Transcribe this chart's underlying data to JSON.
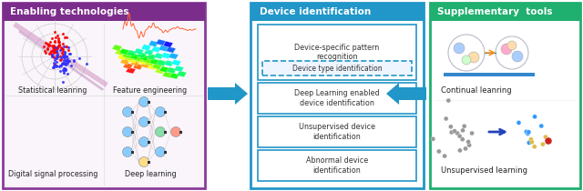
{
  "panel1_title": "Enabling technologies",
  "panel1_title_bg": "#7B2D8B",
  "panel1_border": "#8B3A9B",
  "panel1_bg": "#FAF5FB",
  "panel1_labels": [
    "Statistical leanring",
    "Feature engineering",
    "Digital signal processing",
    "Deep learning"
  ],
  "panel2_title": "Device identification",
  "panel2_title_bg": "#2196C8",
  "panel2_border": "#2196C8",
  "panel2_bg": "#FFFFFF",
  "panel2_boxes_inner": [
    "Device-specific pattern\nrecognition",
    "Deep Learning enabled\ndevice identification",
    "Unsupervised device\nidentification",
    "Abnormal device\nidentification"
  ],
  "panel2_dashed_box": "Device type identification",
  "panel3_title": "Supplementary  tools",
  "panel3_title_bg": "#1FAF6E",
  "panel3_border": "#1FAF6E",
  "panel3_bg": "#FFFFFF",
  "panel3_label1": "Continual leanring",
  "panel3_label2": "Unsupervised learning",
  "arrow_color": "#2196C8",
  "fig_width": 6.4,
  "fig_height": 2.1,
  "dpi": 100
}
